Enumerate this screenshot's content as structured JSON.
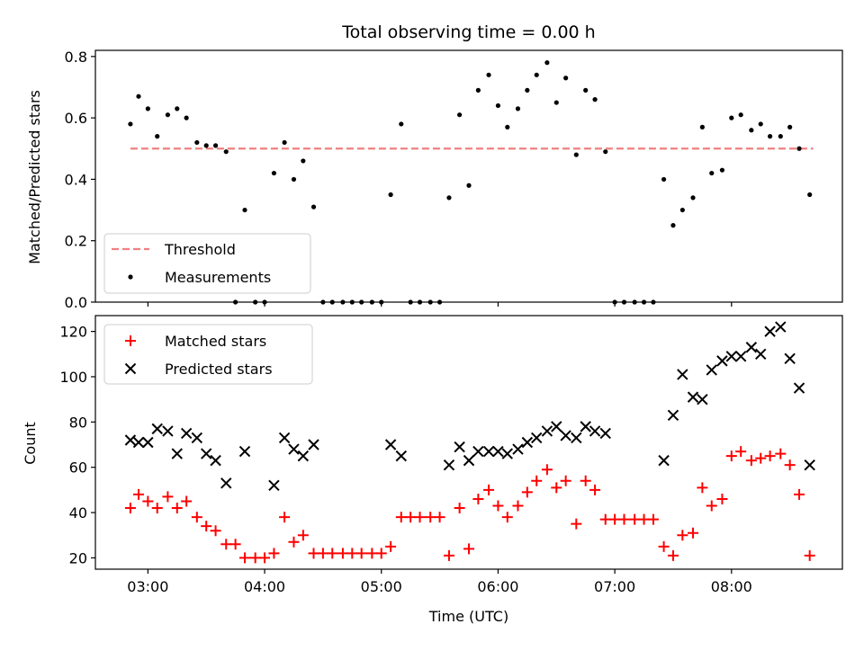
{
  "chart_data": [
    {
      "type": "scatter",
      "title": "Total observing time = 0.00 h",
      "xlabel": "",
      "ylabel": "Matched/Predicted stars",
      "ylim": [
        0,
        0.82
      ],
      "yticks": [
        "0.0",
        "0.2",
        "0.4",
        "0.6",
        "0.8"
      ],
      "grid": false,
      "legend_position": "lower-left",
      "threshold": {
        "name": "Threshold",
        "value": 0.5,
        "color": "#f08080",
        "x_range": [
          2.85,
          8.7
        ]
      },
      "series": [
        {
          "name": "Measurements",
          "color": "#000000",
          "x": [
            2.85,
            2.92,
            3.0,
            3.08,
            3.17,
            3.25,
            3.33,
            3.42,
            3.5,
            3.58,
            3.67,
            3.75,
            3.83,
            3.92,
            4.0,
            4.08,
            4.17,
            4.25,
            4.33,
            4.42,
            4.5,
            4.58,
            4.67,
            4.75,
            4.83,
            4.92,
            5.0,
            5.08,
            5.17,
            5.25,
            5.33,
            5.42,
            5.5,
            5.58,
            5.67,
            5.75,
            5.83,
            5.92,
            6.0,
            6.08,
            6.17,
            6.25,
            6.33,
            6.42,
            6.5,
            6.58,
            6.67,
            6.75,
            6.83,
            6.92,
            7.0,
            7.08,
            7.17,
            7.25,
            7.33,
            7.42,
            7.5,
            7.58,
            7.67,
            7.75,
            7.83,
            7.92,
            8.0,
            8.08,
            8.17,
            8.25,
            8.33,
            8.42,
            8.5,
            8.58,
            8.67
          ],
          "y": [
            0.58,
            0.67,
            0.63,
            0.54,
            0.61,
            0.63,
            0.6,
            0.52,
            0.51,
            0.51,
            0.49,
            0.0,
            0.3,
            0.0,
            0.0,
            0.42,
            0.52,
            0.4,
            0.46,
            0.31,
            0.0,
            0.0,
            0.0,
            0.0,
            0.0,
            0.0,
            0.0,
            0.35,
            0.58,
            0.0,
            0.0,
            0.0,
            0.0,
            0.34,
            0.61,
            0.38,
            0.69,
            0.74,
            0.64,
            0.57,
            0.63,
            0.69,
            0.74,
            0.78,
            0.65,
            0.73,
            0.48,
            0.69,
            0.66,
            0.49,
            0.0,
            0.0,
            0.0,
            0.0,
            0.0,
            0.4,
            0.25,
            0.3,
            0.34,
            0.57,
            0.42,
            0.43,
            0.6,
            0.61,
            0.56,
            0.58,
            0.54,
            0.54,
            0.57,
            0.5,
            0.35
          ]
        }
      ]
    },
    {
      "type": "scatter",
      "title": "",
      "xlabel": "Time (UTC)",
      "ylabel": "Count",
      "ylim": [
        15,
        127
      ],
      "yticks": [
        "20",
        "40",
        "60",
        "80",
        "100",
        "120"
      ],
      "xlim": [
        2.55,
        8.95
      ],
      "xticks": [
        "03:00",
        "04:00",
        "05:00",
        "06:00",
        "07:00",
        "08:00"
      ],
      "grid": false,
      "legend_position": "top-left",
      "series": [
        {
          "name": "Matched stars",
          "color": "#ff0000",
          "marker": "plus",
          "x": [
            2.85,
            2.92,
            3.0,
            3.08,
            3.17,
            3.25,
            3.33,
            3.42,
            3.5,
            3.58,
            3.67,
            3.75,
            3.83,
            3.92,
            4.0,
            4.08,
            4.17,
            4.25,
            4.33,
            4.42,
            4.5,
            4.58,
            4.67,
            4.75,
            4.83,
            4.92,
            5.0,
            5.08,
            5.17,
            5.25,
            5.33,
            5.42,
            5.5,
            5.58,
            5.67,
            5.75,
            5.83,
            5.92,
            6.0,
            6.08,
            6.17,
            6.25,
            6.33,
            6.42,
            6.5,
            6.58,
            6.67,
            6.75,
            6.83,
            6.92,
            7.0,
            7.08,
            7.17,
            7.25,
            7.33,
            7.42,
            7.5,
            7.58,
            7.67,
            7.75,
            7.83,
            7.92,
            8.0,
            8.08,
            8.17,
            8.25,
            8.33,
            8.42,
            8.5,
            8.58,
            8.67
          ],
          "y": [
            42,
            48,
            45,
            42,
            47,
            42,
            45,
            38,
            34,
            32,
            26,
            26,
            20,
            20,
            20,
            22,
            38,
            27,
            30,
            22,
            22,
            22,
            22,
            22,
            22,
            22,
            22,
            25,
            38,
            38,
            38,
            38,
            38,
            21,
            42,
            24,
            46,
            50,
            43,
            38,
            43,
            49,
            54,
            59,
            51,
            54,
            35,
            54,
            50,
            37,
            37,
            37,
            37,
            37,
            37,
            25,
            21,
            30,
            31,
            51,
            43,
            46,
            65,
            67,
            63,
            64,
            65,
            66,
            61,
            48,
            21
          ]
        },
        {
          "name": "Predicted stars",
          "color": "#000000",
          "marker": "cross",
          "x": [
            2.85,
            2.92,
            3.0,
            3.08,
            3.17,
            3.25,
            3.33,
            3.42,
            3.5,
            3.58,
            3.67,
            3.83,
            4.08,
            4.17,
            4.25,
            4.33,
            4.42,
            5.08,
            5.17,
            5.58,
            5.67,
            5.75,
            5.83,
            5.92,
            6.0,
            6.08,
            6.17,
            6.25,
            6.33,
            6.42,
            6.5,
            6.58,
            6.67,
            6.75,
            6.83,
            6.92,
            7.42,
            7.5,
            7.58,
            7.67,
            7.75,
            7.83,
            7.92,
            8.0,
            8.08,
            8.17,
            8.25,
            8.33,
            8.42,
            8.5,
            8.58,
            8.67
          ],
          "y": [
            72,
            71,
            71,
            77,
            76,
            66,
            75,
            73,
            66,
            63,
            53,
            67,
            52,
            73,
            68,
            65,
            70,
            70,
            65,
            61,
            69,
            63,
            67,
            67,
            67,
            66,
            68,
            71,
            73,
            76,
            78,
            74,
            73,
            78,
            76,
            75,
            63,
            83,
            101,
            91,
            90,
            103,
            107,
            109,
            109,
            113,
            110,
            120,
            122,
            108,
            95,
            61
          ]
        }
      ]
    }
  ]
}
